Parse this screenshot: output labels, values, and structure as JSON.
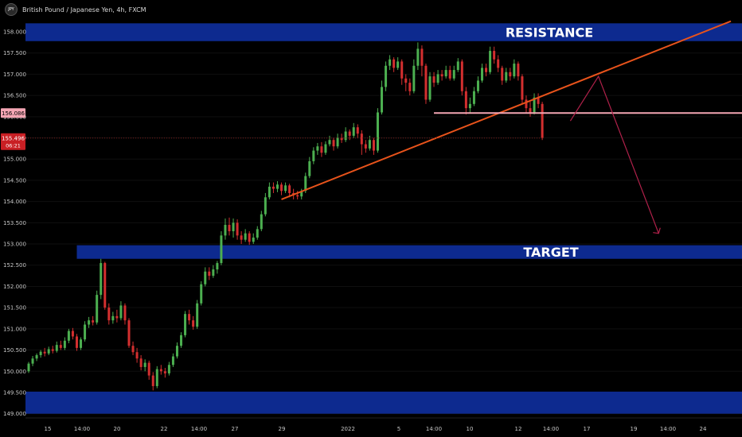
{
  "header": {
    "symbol_badge": "JPY",
    "title": "British Pound / Japanese Yen, 4h, FXCM"
  },
  "price_tags": {
    "level_value": "156.086",
    "current_value": "155.496",
    "countdown": "06:21"
  },
  "colors": {
    "background": "#000000",
    "up_candle": "#4caf50",
    "down_candle": "#d32f2f",
    "zone": "#0d2a8f",
    "trendline": "#e8531b",
    "support_line": "#f4a6b4",
    "projection": "#b0214a"
  },
  "chart_data": {
    "type": "candlestick",
    "title": "British Pound / Japanese Yen, 4h, FXCM",
    "ylim": [
      148.9,
      158.3
    ],
    "y_ticks": [
      "158.000",
      "157.500",
      "157.000",
      "156.500",
      "156.000",
      "155.500",
      "155.000",
      "154.500",
      "154.000",
      "153.500",
      "153.000",
      "152.500",
      "152.000",
      "151.500",
      "151.000",
      "150.500",
      "150.000",
      "149.500",
      "149.000"
    ],
    "x_ticks": [
      "15",
      "14:00",
      "20",
      "22",
      "14:00",
      "27",
      "29",
      "2022",
      "5",
      "14:00",
      "10",
      "12",
      "14:00",
      "17",
      "19",
      "14:00",
      "24"
    ],
    "zones": [
      {
        "label": "RESISTANCE",
        "low": 157.78,
        "high": 158.2
      },
      {
        "label": "TARGET",
        "low": 152.65,
        "high": 152.97
      },
      {
        "label": "",
        "low": 149.0,
        "high": 149.52
      }
    ],
    "support_level": 156.086,
    "current_price": 155.496,
    "candles": [
      [
        150.0,
        150.18,
        150.22,
        149.96
      ],
      [
        150.18,
        150.3,
        150.36,
        150.12
      ],
      [
        150.3,
        150.38,
        150.42,
        150.24
      ],
      [
        150.38,
        150.46,
        150.5,
        150.32
      ],
      [
        150.46,
        150.42,
        150.55,
        150.35
      ],
      [
        150.42,
        150.52,
        150.58,
        150.38
      ],
      [
        150.52,
        150.48,
        150.6,
        150.42
      ],
      [
        150.48,
        150.62,
        150.7,
        150.44
      ],
      [
        150.62,
        150.55,
        150.72,
        150.5
      ],
      [
        150.55,
        150.72,
        150.8,
        150.5
      ],
      [
        150.72,
        150.95,
        151.0,
        150.66
      ],
      [
        150.95,
        150.82,
        151.02,
        150.75
      ],
      [
        150.82,
        150.55,
        150.88,
        150.48
      ],
      [
        150.55,
        150.75,
        150.8,
        150.5
      ],
      [
        150.75,
        151.1,
        151.18,
        150.7
      ],
      [
        151.1,
        151.2,
        151.28,
        151.02
      ],
      [
        151.2,
        151.15,
        151.3,
        151.08
      ],
      [
        151.15,
        151.8,
        151.9,
        151.1
      ],
      [
        151.8,
        152.55,
        152.65,
        151.7
      ],
      [
        152.55,
        151.5,
        152.58,
        151.45
      ],
      [
        151.5,
        151.2,
        151.6,
        151.1
      ],
      [
        151.2,
        151.3,
        151.4,
        151.12
      ],
      [
        151.3,
        151.25,
        151.45,
        151.15
      ],
      [
        151.25,
        151.55,
        151.65,
        151.2
      ],
      [
        151.55,
        151.2,
        151.6,
        151.1
      ],
      [
        151.2,
        150.6,
        151.25,
        150.55
      ],
      [
        150.6,
        150.45,
        150.7,
        150.38
      ],
      [
        150.45,
        150.3,
        150.55,
        150.2
      ],
      [
        150.3,
        150.1,
        150.38,
        150.02
      ],
      [
        150.1,
        150.2,
        150.28,
        150.0
      ],
      [
        150.2,
        149.9,
        150.25,
        149.8
      ],
      [
        149.9,
        149.65,
        149.98,
        149.55
      ],
      [
        149.65,
        150.05,
        150.12,
        149.6
      ],
      [
        150.05,
        150.0,
        150.15,
        149.92
      ],
      [
        150.0,
        149.95,
        150.08,
        149.85
      ],
      [
        149.95,
        150.15,
        150.22,
        149.9
      ],
      [
        150.15,
        150.35,
        150.42,
        150.1
      ],
      [
        150.35,
        150.6,
        150.68,
        150.3
      ],
      [
        150.6,
        150.85,
        150.92,
        150.55
      ],
      [
        150.85,
        151.35,
        151.42,
        150.8
      ],
      [
        151.35,
        151.2,
        151.45,
        151.1
      ],
      [
        151.2,
        151.05,
        151.3,
        150.98
      ],
      [
        151.05,
        151.6,
        151.68,
        151.0
      ],
      [
        151.6,
        152.05,
        152.12,
        151.55
      ],
      [
        152.05,
        152.35,
        152.45,
        152.0
      ],
      [
        152.35,
        152.25,
        152.45,
        152.15
      ],
      [
        152.25,
        152.4,
        152.5,
        152.2
      ],
      [
        152.4,
        152.55,
        152.6,
        152.3
      ],
      [
        152.55,
        153.2,
        153.3,
        152.5
      ],
      [
        153.2,
        153.45,
        153.6,
        153.1
      ],
      [
        153.45,
        153.3,
        153.62,
        153.2
      ],
      [
        153.3,
        153.5,
        153.6,
        153.15
      ],
      [
        153.5,
        153.2,
        153.58,
        153.1
      ],
      [
        153.2,
        153.1,
        153.3,
        153.0
      ],
      [
        153.1,
        153.25,
        153.35,
        153.05
      ],
      [
        153.25,
        153.05,
        153.3,
        152.98
      ],
      [
        153.05,
        153.15,
        153.25,
        153.0
      ],
      [
        153.15,
        153.35,
        153.42,
        153.1
      ],
      [
        153.35,
        153.7,
        153.78,
        153.3
      ],
      [
        153.7,
        154.1,
        154.2,
        153.65
      ],
      [
        154.1,
        154.35,
        154.45,
        154.05
      ],
      [
        154.35,
        154.3,
        154.45,
        154.2
      ],
      [
        154.3,
        154.4,
        154.48,
        154.22
      ],
      [
        154.4,
        154.25,
        154.45,
        154.15
      ],
      [
        154.25,
        154.38,
        154.45,
        154.2
      ],
      [
        154.38,
        154.2,
        154.42,
        154.1
      ],
      [
        154.2,
        154.15,
        154.3,
        154.05
      ],
      [
        154.15,
        154.12,
        154.25,
        154.05
      ],
      [
        154.12,
        154.25,
        154.3,
        154.05
      ],
      [
        154.25,
        154.6,
        154.68,
        154.2
      ],
      [
        154.6,
        154.95,
        155.05,
        154.55
      ],
      [
        154.95,
        155.2,
        155.28,
        154.88
      ],
      [
        155.2,
        155.3,
        155.38,
        155.1
      ],
      [
        155.3,
        155.15,
        155.4,
        155.05
      ],
      [
        155.15,
        155.35,
        155.42,
        155.1
      ],
      [
        155.35,
        155.45,
        155.55,
        155.3
      ],
      [
        155.45,
        155.3,
        155.5,
        155.2
      ],
      [
        155.3,
        155.5,
        155.6,
        155.25
      ],
      [
        155.5,
        155.45,
        155.6,
        155.38
      ],
      [
        155.45,
        155.65,
        155.75,
        155.4
      ],
      [
        155.65,
        155.55,
        155.7,
        155.45
      ],
      [
        155.55,
        155.75,
        155.85,
        155.5
      ],
      [
        155.75,
        155.6,
        155.82,
        155.5
      ],
      [
        155.6,
        155.35,
        155.68,
        155.1
      ],
      [
        155.35,
        155.25,
        155.45,
        155.15
      ],
      [
        155.25,
        155.45,
        155.55,
        155.2
      ],
      [
        155.45,
        155.2,
        155.5,
        155.1
      ],
      [
        155.2,
        156.1,
        156.2,
        155.15
      ],
      [
        156.1,
        156.7,
        156.85,
        156.05
      ],
      [
        156.7,
        157.2,
        157.3,
        156.6
      ],
      [
        157.2,
        157.35,
        157.45,
        157.1
      ],
      [
        157.35,
        157.15,
        157.4,
        157.05
      ],
      [
        157.15,
        157.3,
        157.4,
        157.1
      ],
      [
        157.3,
        156.9,
        157.35,
        156.75
      ],
      [
        156.9,
        156.8,
        157.0,
        156.6
      ],
      [
        156.8,
        156.6,
        156.9,
        156.5
      ],
      [
        156.6,
        157.2,
        157.35,
        156.55
      ],
      [
        157.2,
        157.6,
        157.75,
        157.1
      ],
      [
        157.6,
        157.2,
        157.68,
        156.95
      ],
      [
        157.2,
        156.4,
        157.25,
        156.3
      ],
      [
        156.4,
        156.95,
        157.05,
        156.35
      ],
      [
        156.95,
        156.8,
        157.05,
        156.7
      ],
      [
        156.8,
        157.0,
        157.1,
        156.75
      ],
      [
        157.0,
        156.95,
        157.1,
        156.85
      ],
      [
        156.95,
        157.1,
        157.2,
        156.9
      ],
      [
        157.1,
        156.9,
        157.2,
        156.85
      ],
      [
        156.9,
        157.1,
        157.2,
        156.85
      ],
      [
        157.1,
        157.3,
        157.38,
        157.05
      ],
      [
        157.3,
        156.6,
        157.35,
        156.5
      ],
      [
        156.6,
        156.2,
        156.7,
        156.05
      ],
      [
        156.2,
        156.3,
        156.45,
        156.1
      ],
      [
        156.3,
        156.6,
        156.7,
        156.25
      ],
      [
        156.6,
        156.85,
        156.95,
        156.55
      ],
      [
        156.85,
        157.15,
        157.25,
        156.8
      ],
      [
        157.15,
        157.05,
        157.25,
        156.95
      ],
      [
        157.05,
        157.55,
        157.65,
        157.0
      ],
      [
        157.55,
        157.35,
        157.65,
        157.25
      ],
      [
        157.35,
        157.15,
        157.45,
        157.05
      ],
      [
        157.15,
        156.85,
        157.2,
        156.75
      ],
      [
        156.85,
        157.05,
        157.15,
        156.8
      ],
      [
        157.05,
        156.95,
        157.15,
        156.85
      ],
      [
        156.95,
        157.25,
        157.35,
        156.9
      ],
      [
        157.25,
        156.95,
        157.3,
        156.85
      ],
      [
        156.95,
        156.4,
        157.0,
        156.3
      ],
      [
        156.4,
        156.2,
        156.5,
        156.1
      ],
      [
        156.2,
        156.1,
        156.35,
        156.0
      ],
      [
        156.1,
        156.45,
        156.55,
        156.05
      ],
      [
        156.45,
        156.3,
        156.55,
        156.2
      ],
      [
        156.3,
        155.5,
        156.35,
        155.45
      ]
    ],
    "annotations": {
      "trendline": {
        "from": {
          "bar": 63,
          "price": 154.05
        },
        "to": {
          "bar": 175,
          "price": 158.25
        }
      },
      "support_segment": {
        "from_bar": 101,
        "price": 156.086
      },
      "projection": [
        {
          "bar": 135,
          "price": 155.9
        },
        {
          "bar": 142,
          "price": 156.95
        },
        {
          "bar": 157,
          "price": 153.25
        }
      ]
    }
  }
}
